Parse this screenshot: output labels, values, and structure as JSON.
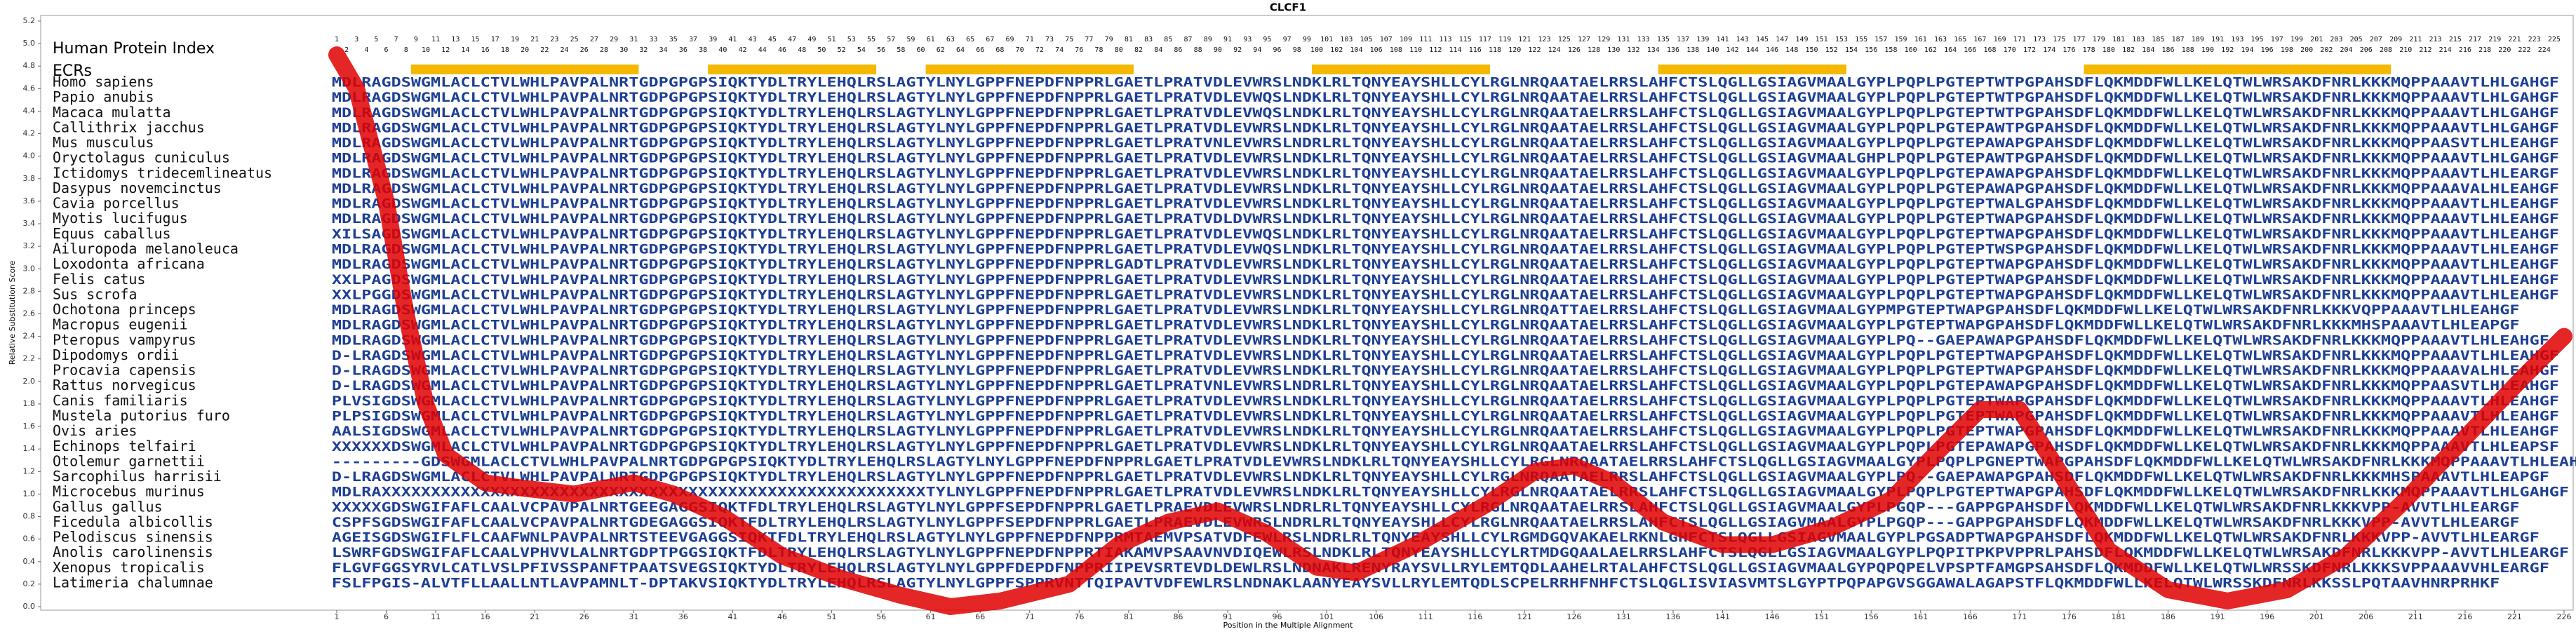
{
  "chart_data": {
    "type": "line",
    "title": "CLCF1",
    "y_label": "Relative Substitution Score",
    "x_label": "Position in the Multiple Alignment",
    "index_label": "Human Protein Index",
    "ecr_label": "ECRs",
    "ecr_color": "#f5b800",
    "xlim": [
      1,
      226
    ],
    "ylim": [
      0,
      5.2
    ],
    "xticks": [
      1,
      6,
      11,
      16,
      21,
      26,
      31,
      36,
      41,
      46,
      51,
      56,
      61,
      66,
      71,
      76,
      81,
      86,
      91,
      96,
      101,
      106,
      111,
      116,
      121,
      126,
      131,
      136,
      141,
      146,
      151,
      156,
      161,
      166,
      171,
      176,
      181,
      186,
      191,
      196,
      201,
      206,
      211,
      216,
      221,
      226
    ],
    "yticks": [
      {
        "value": 0,
        "label": "0.0"
      },
      0.2,
      0.4,
      0.6,
      0.8,
      {
        "value": 1,
        "label": "1.0"
      },
      1.2,
      1.4,
      1.6,
      1.8,
      {
        "value": 2,
        "label": "2.0"
      },
      2.2,
      2.4,
      2.6,
      2.8,
      {
        "value": 3,
        "label": "3.0"
      },
      3.2,
      3.4,
      3.6,
      3.8,
      {
        "value": 4,
        "label": "4.0"
      },
      4.2,
      4.4,
      4.6,
      4.8,
      {
        "value": 5,
        "label": "5.0"
      },
      5.2
    ],
    "human_index_odd": [
      1,
      3,
      5,
      7,
      9,
      11,
      13,
      15,
      17,
      19,
      21,
      23,
      25,
      27,
      29,
      31,
      33,
      35,
      37,
      39,
      41,
      43,
      45,
      47,
      49,
      51,
      53,
      55,
      57,
      59,
      61,
      63,
      65,
      67,
      69,
      71,
      73,
      75,
      77,
      79,
      81,
      83,
      85,
      87,
      89,
      91,
      93,
      95,
      97,
      99,
      101,
      103,
      105,
      107,
      109,
      111,
      113,
      115,
      117,
      119,
      121,
      123,
      125,
      127,
      129,
      131,
      133,
      135,
      137,
      139,
      141,
      143,
      145,
      147,
      149,
      151,
      153,
      155,
      157,
      159,
      161,
      163,
      165,
      167,
      169,
      171,
      173,
      175,
      177,
      179,
      181,
      183,
      185,
      187,
      189,
      191,
      193,
      195,
      197,
      199,
      201,
      203,
      205,
      207,
      209,
      211,
      213,
      215,
      217,
      219,
      221,
      223,
      225
    ],
    "human_index_even": [
      2,
      4,
      6,
      8,
      10,
      12,
      14,
      16,
      18,
      20,
      22,
      24,
      26,
      28,
      30,
      32,
      34,
      36,
      38,
      40,
      42,
      44,
      46,
      48,
      50,
      52,
      54,
      56,
      58,
      60,
      62,
      64,
      66,
      68,
      70,
      72,
      74,
      76,
      78,
      80,
      82,
      84,
      86,
      88,
      90,
      92,
      94,
      96,
      98,
      100,
      102,
      104,
      106,
      108,
      110,
      112,
      114,
      116,
      118,
      120,
      122,
      124,
      126,
      128,
      130,
      132,
      134,
      136,
      138,
      140,
      142,
      144,
      146,
      148,
      150,
      152,
      154,
      156,
      158,
      160,
      162,
      164,
      166,
      168,
      170,
      172,
      174,
      176,
      178,
      180,
      182,
      184,
      186,
      188,
      190,
      192,
      194,
      196,
      198,
      200,
      202,
      204,
      206,
      208,
      210,
      212,
      214,
      216,
      218,
      220,
      222,
      224
    ],
    "ecrs": [
      [
        9,
        31
      ],
      [
        39,
        55
      ],
      [
        61,
        81
      ],
      [
        100,
        117
      ],
      [
        135,
        153
      ],
      [
        178,
        208
      ]
    ],
    "series": [
      {
        "name": "Relative Substitution Score",
        "color": "#e00000",
        "x": [
          1,
          3,
          6,
          8,
          10,
          12,
          16,
          20,
          25,
          31,
          35,
          40,
          46,
          52,
          58,
          63,
          68,
          75,
          80,
          85,
          90,
          95,
          100,
          104,
          110,
          117,
          122,
          126,
          130,
          135,
          141,
          146,
          152,
          158,
          163,
          167,
          171,
          175,
          180,
          186,
          192,
          198,
          204,
          210,
          216,
          222,
          226
        ],
        "values": [
          4.9,
          4.6,
          3.6,
          2.6,
          1.8,
          1.35,
          1.1,
          1.05,
          1.0,
          1.1,
          1.0,
          0.8,
          0.45,
          0.25,
          0.1,
          0.0,
          0.05,
          0.2,
          0.55,
          0.75,
          0.85,
          0.65,
          0.35,
          0.3,
          0.55,
          0.9,
          1.2,
          1.25,
          1.1,
          0.75,
          0.55,
          0.55,
          0.7,
          0.95,
          1.4,
          1.75,
          1.75,
          1.2,
          0.5,
          0.15,
          0.05,
          0.15,
          0.45,
          0.95,
          1.5,
          2.05,
          2.4
        ]
      }
    ],
    "species": [
      {
        "name": "Homo sapiens",
        "sequence": "MDLRAGDSWGMLACLCTVLWHLPAVPALNRTGDPGPGPSIQKTYDLTRYLEHQLRSLAGTYLNYLGPPFNEPDFNPPRLGAETLPRATVDLEVWRSLNDKLRLTQNYEAYSHLLCYLRGLNRQAATAELRRSLAHFCTSLQGLLGSIAGVMAALGYPLPQPLPGTEPTWTPGPAHSDFLQKMDDFWLLKELQTWLWRSAKDFNRLKKKMQPPAAAVTLHLGAHGF"
      },
      {
        "name": "Papio anubis",
        "sequence": "MDLRAGDSWGMLACLCTVLWHLPAVPALNRTGDPGPGPSIQKTYDLTRYLEHQLRSLAGTYLNYLGPPFNEPDFNPPRLGAETLPRATVDLEVWQSLNDKLRLTQNYEAYSHLLCYLRGLNRQAATAELRRSLAHFCTSLQGLLGSIAGVMAALGYPLPQPLPGTEPTWTPGPAHSDFLQKMDDFWLLKELQTWLWRSAKDFNRLKKKMQPPAAAVTLHLGAHGF"
      },
      {
        "name": "Macaca mulatta",
        "sequence": "MDLRAGDSWGMLACLCTVLWHLPAVPALNRTGDPGPGPSIQKTYDLTRYLEHQLRSLAGTYLNYLGPPFNEPDFNPPRLGAETLPRATVDLEVWQSLNDKLRLTQNYEAYSHLLCYLRGLNRQAATAELRRSLAHFCTSLQGLLGSIAGVMAALGYPLPQPLPGTEPTWTPGPAHSDFLQKMDDFWLLKELQTWLWRSAKDFNRLKKKMQPPAAAVTLHLGAHGF"
      },
      {
        "name": "Callithrix jacchus",
        "sequence": "MDLRAGDSWGMLACLCTVLWHLPAVPALNRTGDPGPGPSIQKTYDLTRYLEHQLRSLAGTYLNYLGPPFNEPDFNPPRLGAETLPRATVDLEVWRSLNDKLRLTQNYEAYSHLLCYLRGLNRQAATAELRRSLAHFCTSLQGLLGSIAGVMAALGYPLPQPLPGTEPAWTPGPAHSDFLQKMDDFWLLKELQTWLWRSAKDFNRLKKKMQPPAAAVTLHLGAHGF"
      },
      {
        "name": "Mus musculus",
        "sequence": "MDLRAGDSWGMLACLCTVLWHLPAVPALNRTGDPGPGPSIQKTYDLTRYLEHQLRSLAGTYLNYLGPPFNEPDFNPPRLGAETLPRATVNLEVWRSLNDRLRLTQNYEAYSHLLCYLRGLNRQAATAELRRSLAHFCTSLQGLLGSIAGVMAALGYPLPQPLPGTEPAWAPGPAHSDFLQKMDDFWLLKELQTWLWRSAKDFNRLKKKMQPPAASVTLHLEAHGF"
      },
      {
        "name": "Oryctolagus cuniculus",
        "sequence": "MDLRAGDSWGMLACLCTVLWHLPAVPALNRTGDPGPGPSIQKTYDLTRYLEHQLRSLAGTYLNYLGPPFNEPDFNPPRLGAETLPRATVDLEVWRSLNDKLRLTQNYEAYSHLLCYLRGLNRQAATAELRRSLAHFCTSLQGLLGSIAGVMAALGHPLPQPLPGTEPAWTPGPAHSDFLQKMDDFWLLKELQTWLWRSAKDFNRLKKKMQPPAAAVTLHLGAHGF"
      },
      {
        "name": "Ictidomys tridecemlineatus",
        "sequence": "MDLRAGDSWGMLACLCTVLWHLPAVPALNRTGDPGPGPSIQKTYDLTRYLEHQLRSLAGTYLNYLGPPFNEPDFNPPRLGAETLPRATVDLEVWRSLNDKLRLTQNYEAYSHLLCYLRGLNRQAATAELRRSLAHFCTSLQGLLGSIAGVMAALGYPLPQPLPGTEPAWAPGPAHSDFLQKMDDFWLLKELQTWLWRSAKDFNRLKKKMQPPAAAVTLHLEARGF"
      },
      {
        "name": "Dasypus novemcinctus",
        "sequence": "MDLRAGDSWGMLACLCTVLWHLPAVPALNRTGDPGPGPSIQKTYDLTRYLEHQLRSLAGTYLNYLGPPFNEPDFNPPRLGAETLPRATVDLEVWRSLNDKLRLTQNYEAYSHLLCYLRGLNRQAATAELRRSLAHFCTSLQGLLGSIAGVMAALGYPLPQPLPGTEPAWAPGPAHSDFLQKMDDFWLLKELQTWLWRSAKDFNRLKKKMQPPAAAVALHLEAHGF"
      },
      {
        "name": "Cavia porcellus",
        "sequence": "MDLRAGDSWGMLACLCTVLWHLPAVPALNRTGDPGPGPSIQKTYDLTRYLEHQLRSLAGTYLNYLGPPFNEPDFNPPRLGAETLPRATVDLEVWRSLNDKLRLTQNYEAYSHLLCYLRGLNRQAATAELRRSLAHFCTSLQGLLGSIAGVMAALGYPLPQPLPGTEPTWALGPAHSDFLQKMDDFWLLKELQTWLWRSAKDFNRLKKKMQPPAAAVTLHLEAHGF"
      },
      {
        "name": "Myotis lucifugus",
        "sequence": "MDLRAGDSWGMLACLCTVLWHLPAVPALNRTGDPGPGPSIQKTYDLTRYLEHQLRSLAGTYLNYLGPPFNEPDFNPPRLGAETLPRATVDLDVWRSLNDKLRLTQNYEAYSHLLCYLRGLNRQAATAELRRSLAHFCTSLQGLLGSIAGVMAALGYPLPQPLPGTEPTWAPGPAHSDFLQKMDDFWLLKELQTWLWRSAKDFNRLKKKMQPPAAAVTLHLEAHGF"
      },
      {
        "name": "Equus caballus",
        "sequence": "XILSAGDSWGMLACLCTVLWHLPAVPALNRTGDPGPGPSIQKTYDLTRYLEHQLRSLAGTYLNYLGPPFNEPDFNPPRLGAETLPRATVDLEVWQSLNDKLRLTQNYEAYSHLLCYLRGLNRQAATAELRRSLAHFCTSLQGLLGSIAGVMAALGYPLPQPLPGTEPTWAPGPAHSDFLQKMDDFWLLKELQTWLWRSAKDFNRLKKKMQPPAAAVTLHLEAHGF"
      },
      {
        "name": "Ailuropoda melanoleuca",
        "sequence": "MDLRAGDSWGMLACLCTVLWHLPAVPALNRTGDPGPGPSIQKTYDLTRYLEHQLRSLAGTYLNYLGPPFNEPDFNPPRLGAETLPRATVDLEVWQSLNDKLRLTQNYEAYSHLLCYLRGLNRQAATAELRRSLAHFCTSLQGLLGSIAGVMAALGYPLPQPLPGTEPTWSPGPAHSDFLQKMDDFWLLKELQTWLWRSAKDFNRLKKKMQPPAAAVTLHLEAHGF"
      },
      {
        "name": "Loxodonta africana",
        "sequence": "MDLRAGDSWGMLACLCTVLWHLPAVPALNRTGDPGPGPSIQKTYDLTRYLEHQLRSLAGTYLNYLGPPFNEPDFNPPRLGADTLPRATVDLEVWRSLNDKLRLTQNYEAYSHLLCYLRGLNRQAATAELRRSLAHFCTSLQGLLGSIAGVMAALGYPLPQPLPGTEPTWAPGPAHSDFLQKMDDFWLLKELQTWLWRSAKDFNRLKKKMQPPAAAVTLHLEAHGF"
      },
      {
        "name": "Felis catus",
        "sequence": "XXLPAGDSWGMLACLCTVLWHLPAVPALNRTGDPGPGPSIQKTYDLTRYLEHQLRSLAGTYLNYLGPPFNEPDFNPPRLGAETLPRATVDLEVWRSLNDKLRLTQNYEAYSHLLCYLRGLNRQAATAELRRSLAHFCTSLQGLLGSIAGVMAALGYPLPQPLPGTEPTWAPGPAHSDFLQKMDDFWLLKELQTWLWRSAKDFNRLKKKMQPPAAAVTLHLEAHGF"
      },
      {
        "name": "Sus scrofa",
        "sequence": "XXLPGGDSWGMLACLCTVLWHLPAVPALNRTGDPGPGPSIQKTYDLTRYLEHQLRSLAGTYLNYLGPPFNEPDFNPPRLGAETLPRATVDLEVWRSLNDKLRLTQNYEAYSHLLCYLRGLNRQAATAELRRSLAHFCTSLQGLLGSIAGVMAALGYPLPQPLPGTEPTWAPGPAHSDFLQKMDDFWLLKELQTWLWRSAKDFNRLKKKMQPPAAAVTLHLEAHGF"
      },
      {
        "name": "Ochotona princeps",
        "sequence": "MDLRAGDSWGMLACLCTVLWHLPAVPALNRTGDPGPGPSIQKTYDLTRYLEHQLRSLAGTYLNYLGPPFNEPDFNPPRLGAETLPRATVDLEVWRSLNDKLRLTQNYEAYSHLLCYLRGLNRQATTAELRRSLAHFCTSLQGLLGSIAGVMAALGYPMPGTEPTWAPGPAHSDFLQKMDDFWLLKELQTWLWRSAKDFNRLKKKVQPPAAAVTLHLEAHGF"
      },
      {
        "name": "Macropus eugenii",
        "sequence": "MDLRAGDSWGMLACLCTVLWHLPAVPALNRTGDPGPGPSIQKTYDLTRYLEHQLRSLAGTYLNYLGPPFNEPDFNPPRLGAETLPRATVDLEVWRSLNDKLRLTQNYEAYSHLLCYLRGLNRQAATAELRRSLAHFCTSLQGLLGSIAGVMAALGYPLPGTEPTWAPGPAHSDFLQKMDDFWLLKELQTWLWRSAKDFNRLKKKMHSPAAAVTLHLEAPGF"
      },
      {
        "name": "Pteropus vampyrus",
        "sequence": "MDLRAGDSWGMLACLCTVLWHLPAVPALNRTGDPGPGPSIQKTYDLTRYLEHQLRSLAGTYLNYLGPPFNEPDFNPPRLGAETLPRATVDLEVWRSLNDKLRLTQNYEAYSHLLCYLRGLNRQAATAELRRSLAHFCTSLQGLLGSIAGVMAALGYPLPQ--GAEPAWAPGPAHSDFLQKMDDFWLLKELQTWLWRSAKDFNRLKKKMQPPAAAVTLHLEAHGF"
      },
      {
        "name": "Dipodomys ordii",
        "sequence": "D-LRAGDSWGMLACLCTVLWHLPAVPALNRTGDPGPGPSIQKTYDLTRYLEHQLRSLAGTYLNYLGPPFNEPDFNPPRLGAETLPRATVDLEVWRSLNDKLRLTQNYEAYSHLLCYLRGLNRQAATAELRRSLAHFCTSLQGLLGSIAGVMAALGYPLPQPLPGTEPTWAPGPAHSDFLQKMDDFWLLKELQTWLWRSAKDFNRLKKKMQPPAAAVTLHLEAHGF"
      },
      {
        "name": "Procavia capensis",
        "sequence": "D-LRAGDSWGMLACLCTVLWHLPAVPALNRTGDPGPGPSIQKTYDLTRYLEHQLRSLAGTYLNYLGPPFNEPDFNPPRLGAETLPRATVDLEVWRSLNDKLRLTQNYEAYSHLLCYLRGLNRQAATAELRRSLAHFCTSLQGLLGSIAGVMAALGYPLPQPLPGTEPTWAPGPAHSDFLQKMDDFWLLKELQTWLWRSAKDFNRLKKKMQPPAAAVALHLEAHGF"
      },
      {
        "name": "Rattus norvegicus",
        "sequence": "D-LRAGDSWGMLACLCTVLWHLPAVPALNRTGDPGPGPSIQKTYDLTRYLEHQLRSLAGTYLNYLGPPFNEPDFNPPRLGAETLPRATVNLEVWRSLNDRLRLTQNYEAYSHLLCYLRGLNRQAATAELRRSLAHFCTSLQGLLGSIAGVMAALGYPLPQPLPGTEPAWAPGPAHSDFLQKMDDFWLLKELQTWLWRSAKDFNRLKKKMQPPAASVTLHLEAHGF"
      },
      {
        "name": "Canis familiaris",
        "sequence": "PLVSIGDSWGMLACLCTVLWHLPAVPALNRTGDPGPGPSIQKTYDLTRYLEHQLRSLAGTYLNYLGPPFNEPDFNPPRLGAETLPRATVDLEVWRSLNDKLRLTQNYEAYSHLLCYLRGLNRQAATAELRRSLAHFCTSLQGLLGSIAGVMAALGYPLPQPLPGTEPTWAPGPAHSDFLQKMDDFWLLKELQTWLWRSAKDFNRLKKKMQPPAAAVTLHLEAHGF"
      },
      {
        "name": "Mustela putorius furo",
        "sequence": "PLPSIGDSWGMLACLCTVLWHLPAVPALNRTGDPGPGPSIQKTYDLTRYLEHQLRSLAGTYLNYLGPPFNEPDFNPPRLGAETLPRATVDLEVWRSLNDKLRLTQNYEAYSHLLCYLRGLNRQAATAELRRSLAHFCTSLQGLLGSIAGVMAALGYPLPQPLPGTEPTWAPGPAHSDFLQKMDDFWLLKELQTWLWRSAKDFNRLKKKMQPPAAAVTLHLEAHGF"
      },
      {
        "name": "Ovis aries",
        "sequence": "AALSIGDSWGMLACLCTVLWHLPAVPALNRTGDPGPGPSIQKTYDLTRYLEHQLRSLAGTYLNYLGPPFNEPDFNPPRLGAETLPRATVDLEVWRSLNDKLRLTQNYEAYSHLLCYLRGLNRQAATAELRRSLAHFCTSLQGLLGSIAGVMAALGYPLPQPLPGTEPTWAPGPAHSDFLQKMDDFWLLKELQTWLWRSAKDFNRLKKKMQPPAAAVTLHLEAHGF"
      },
      {
        "name": "Echinops telfairi",
        "sequence": "XXXXXXDSWGMLACLCTVLWHLPAVPALNRTGDPGPGPSIQKTYDLTRYLEHQLRSLAGTYLNYLGPPFNEPDFNPPRLGAETLPRATVDLEVWRSLNDKLRLTQNYEAYSHLLCYLRGLNRQAATAELRRSLAHFCTSLQGLLGSIAGVMAALGYPLPQPLPGTEPAWAPGPAHSDFLQKMDDFWLLKELQTWLWRSAKDFNRLKKKMQPPAAAVTLHLEAPSF"
      },
      {
        "name": "Otolemur garnettii",
        "sequence": "---------GDSWGMLACLCTVLWHLPAVPALNRTGDPGPGPSIQKTYDLTRYLEHQLRSLAGTYLNYLGPPFNEPDFNPPRLGAETLPRATVDLEVWRSLNDKLRLTQNYEAYSHLLCYLRGLNRQAATAELRRSLAHFCTSLQGLLGSIAGVMAALGYPLPQPLPGNEPTWAPGPAHSDFLQKMDDFWLLKELQTWLWRSAKDFNRLKKKMQPPAAAVTLHLEAHGF"
      },
      {
        "name": "Sarcophilus harrisii",
        "sequence": "D-LRAGDSWGMLACLCTVLWHLPAVPALNRTGDPGPGPSIQKTYDLTRYLEHQLRSLAGTYLNYLGPPFNEPDFNPPRLGAETLPRATVDLEVWRSLNDKLRLTQNYEAYSHLLCYLRGLNRQAATAELRRSLAHFCTSLQGLLGSIAGVMAALGYPLPQ--GAEPAWAPGPAHSDFLQKMDDFWLLKELQTWLWRSAKDFNRLKKKMHSPAAAVTLHLEAPGF"
      },
      {
        "name": "Microcebus murinus",
        "sequence": "MDLRAXXXXXXXXXXXXXXXXXXXXXXXXXXXXXXXXXXXXXXXXXXXXXXXXXXXXXXXTYLNYLGPPFNEPDFNPPRLGAETLPRATVDLEVWRSLNDKLRLTQNYEAYSHLLCYLRGLNRQAATAELRRSLAHFCTSLQGLLGSIAGVMAALGYPLPQPLPGTEPTWAPGPAHSDFLQKMDDFWLLKELQTWLWRSAKDFNRLKKKMQPPAAAVTLHLGAHGF"
      },
      {
        "name": "Gallus gallus",
        "sequence": "XXXXXGDSWGIFAFLCAALVCPAVPALNRTGEEGAGGSIQKTFDLTRYLEHQLRSLAGTYLNYLGPPFSEPDFNPPRLGAETLPRAEVDLEVWRSLNDRLRLTQNYEAYSHLLCYLRGLNRQAATAELRRSLAHFCTSLQGLLGSIAGVMAALGYPLPGQP---GAPPGPAHSDFLQKMDDFWLLKELQTWLWRSAKDFNRLKKKVPP-AVVTLHLEARGF"
      },
      {
        "name": "Ficedula albicollis",
        "sequence": "CSPFSGDSWGIFAFLCAALVCPAVPALNRTGDEGAGGSIQKTFDLTRYLEHQLRSLAGTYLNYLGPPFSEPDFNPPRLGAETLPRAEVDLEVWRSLNDRLRLTQNYEAYSHLLCYLRGLNRQAATAELRRSLAHFCTSLQGLLGSIAGVMAALGYPLPGQP---GAPPGPAHSDFLQKMDDFWLLKELQTWLWRSAKDFNRLKKKVPP-AVVTLHLEARGF"
      },
      {
        "name": "Pelodiscus sinensis",
        "sequence": "AGEISGDSWGIFLFLCAAFWNLPAVPALNRTSTEEVGAGGSIQKTFDLTRYLEHQLRSLAGTYLNYLGPPFNEPDFNPPRMTAEMVPSATVDFEWLRSLNDRLRLTQNYEAYSHLLCYLRGMDGQVAKAELRKNLGHFCTSLQGLLGSIAGVMAALGYPLPGSADPTWAPGPAHSDFLQKMDDFWLLKELQTWLWRSAKDFNRLKKKVPP-AVVTLHLEARGF"
      },
      {
        "name": "Anolis carolinensis",
        "sequence": "LSWRFGDSWGIFAFLCAALVPHVVLALNRTGDPTPGGSIQKTFDLTRYLEHQLRSLAGTYLNYLGPPFNEPDFNPPRTIAKAMVPSAAVNVDIQEWLRSLNDKLRLTQNYEAYSHLLCYLRTMDGQAALAELRRSLAHFCTSLQGLLGSIAGVMAALGYPLPQPITPKPVPPRLPAHSDFLQKMDDFWLLKELQTWLWRSAKDFNRLKKKVPP-AVVTLHLEARGF"
      },
      {
        "name": "Xenopus tropicalis",
        "sequence": "FLGVFGGSYRVLCATLVSLPFIVSSPANFTPAATSVEGSIQKTYDLTRYLEHQLRSLAGTYLNYLGPPFDEPDFNPPRIIPEVSRTEVDLDEWLRSLNDNAKLRENYRAYSVLLRYLEMTQDLAAHELRTALAHFCTSLQGLLGSIAGVMAALGYPQPQPELVPSPTFAMGPSAHSDFLQKMDDFWLLKELQTWLWRSSKDFNRLKKKSVPPAAAVVHLEARGF"
      },
      {
        "name": "Latimeria chalumnae",
        "sequence": "FSLFPGIS-ALVTFLLAALLNTLAVPAMNLT-DPTAKVSIQKTYDLTRYLEHQLRSLAGTYLNYLGPPFSPPRVNTTQIPAVTVDFEWLRSLNDNAKLAANYEAYSVLLRYLEMTQDLSCPELRRHFNHFCTSLQGLISVIASVMTSLGYPTPQPAPGVSGGAWALAGAPSTFLQKMDDFWLLKELQTWLWRSSKDFNRLKKSSLPQTAAVHNRPRHKF"
      }
    ]
  }
}
